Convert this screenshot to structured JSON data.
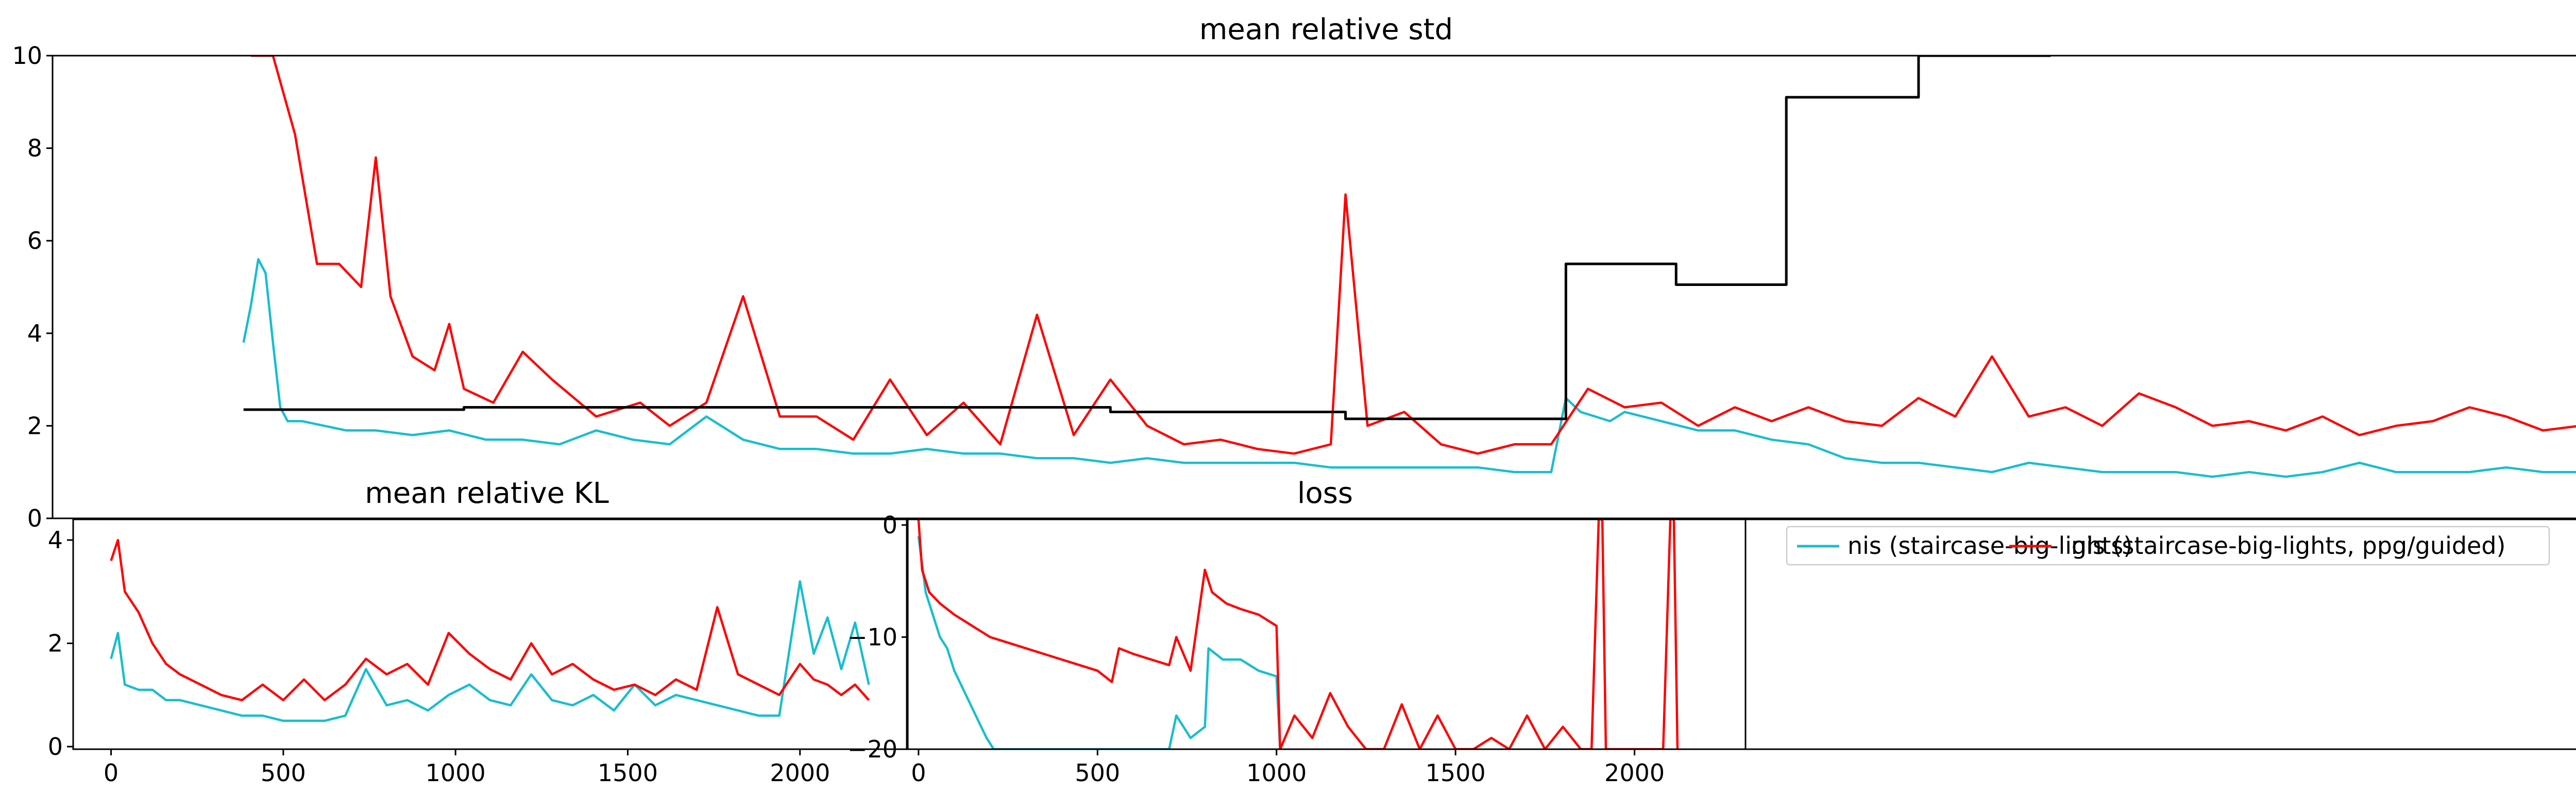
{
  "chart_data": [
    {
      "type": "line",
      "title": "mean relative std",
      "xlabel": "",
      "ylabel": "",
      "xlim": [
        -40,
        3430
      ],
      "ylim": [
        0,
        10
      ],
      "y_ticks": [
        0,
        2,
        4,
        6,
        8,
        10
      ],
      "x_ticks": [],
      "grid": false,
      "series": [
        {
          "name": "nis (staircase-big-lights)",
          "color": "#17BECF",
          "x": [
            220,
            230,
            240,
            250,
            260,
            270,
            280,
            300,
            330,
            360,
            400,
            450,
            500,
            550,
            600,
            650,
            700,
            750,
            800,
            850,
            900,
            950,
            1000,
            1050,
            1100,
            1150,
            1200,
            1250,
            1300,
            1350,
            1400,
            1450,
            1500,
            1550,
            1600,
            1650,
            1700,
            1750,
            1800,
            1850,
            1900,
            1950,
            2000,
            2020,
            2040,
            2060,
            2080,
            2100,
            2150,
            2200,
            2250,
            2300,
            2350,
            2400,
            2450,
            2500,
            2550,
            2600,
            2650,
            2700,
            2750,
            2800,
            2850,
            2900,
            2950,
            3000,
            3050,
            3100,
            3150,
            3200,
            3250,
            3300,
            3350,
            3400
          ],
          "y": [
            3.8,
            4.6,
            5.6,
            5.3,
            3.8,
            2.4,
            2.1,
            2.1,
            2.0,
            1.9,
            1.9,
            1.8,
            1.9,
            1.7,
            1.7,
            1.6,
            1.9,
            1.7,
            1.6,
            2.2,
            1.7,
            1.5,
            1.5,
            1.4,
            1.4,
            1.5,
            1.4,
            1.4,
            1.3,
            1.3,
            1.2,
            1.3,
            1.2,
            1.2,
            1.2,
            1.2,
            1.1,
            1.1,
            1.1,
            1.1,
            1.1,
            1.0,
            1.0,
            2.6,
            2.3,
            2.2,
            2.1,
            2.3,
            2.1,
            1.9,
            1.9,
            1.7,
            1.6,
            1.3,
            1.2,
            1.2,
            1.1,
            1.0,
            1.2,
            1.1,
            1.0,
            1.0,
            1.0,
            0.9,
            1.0,
            0.9,
            1.0,
            1.2,
            1.0,
            1.0,
            1.0,
            1.1,
            1.0,
            1.0
          ]
        },
        {
          "name": "nis (staircase-big-lights, ppg/guided)",
          "color": "#FF0000",
          "x": [
            230,
            260,
            290,
            320,
            350,
            380,
            400,
            420,
            450,
            480,
            500,
            520,
            560,
            600,
            640,
            700,
            760,
            800,
            850,
            900,
            950,
            1000,
            1050,
            1100,
            1150,
            1200,
            1250,
            1300,
            1350,
            1400,
            1450,
            1500,
            1550,
            1600,
            1650,
            1700,
            1720,
            1750,
            1800,
            1850,
            1900,
            1950,
            2000,
            2050,
            2100,
            2150,
            2200,
            2250,
            2300,
            2350,
            2400,
            2450,
            2500,
            2550,
            2600,
            2650,
            2700,
            2750,
            2800,
            2850,
            2900,
            2950,
            3000,
            3050,
            3100,
            3150,
            3200,
            3250,
            3300,
            3350,
            3400
          ],
          "y": [
            10,
            10,
            8.3,
            5.5,
            5.5,
            5.0,
            7.8,
            4.8,
            3.5,
            3.2,
            4.2,
            2.8,
            2.5,
            3.6,
            3.0,
            2.2,
            2.5,
            2.0,
            2.5,
            4.8,
            2.2,
            2.2,
            1.7,
            3.0,
            1.8,
            2.5,
            1.6,
            4.4,
            1.8,
            3.0,
            2.0,
            1.6,
            1.7,
            1.5,
            1.4,
            1.6,
            7.0,
            2.0,
            2.3,
            1.6,
            1.4,
            1.6,
            1.6,
            2.8,
            2.4,
            2.5,
            2.0,
            2.4,
            2.1,
            2.4,
            2.1,
            2.0,
            2.6,
            2.2,
            3.5,
            2.2,
            2.4,
            2.0,
            2.7,
            2.4,
            2.0,
            2.1,
            1.9,
            2.2,
            1.8,
            2.0,
            2.1,
            2.4,
            2.2,
            1.9,
            2.0
          ]
        },
        {
          "name": "",
          "color": "#000000",
          "step": true,
          "x": [
            220,
            520,
            520,
            1400,
            1400,
            1720,
            1720,
            2020,
            2020,
            2170,
            2170,
            2320,
            2320,
            2500,
            2500,
            2680
          ],
          "y": [
            2.35,
            2.35,
            2.4,
            2.4,
            2.3,
            2.3,
            2.15,
            2.15,
            5.5,
            5.5,
            5.05,
            5.05,
            9.1,
            9.1,
            10,
            10
          ]
        }
      ]
    },
    {
      "type": "line",
      "title": "mean relative KL",
      "xlabel": "",
      "ylabel": "",
      "xlim": [
        -110,
        2310
      ],
      "ylim": [
        -0.05,
        4.4
      ],
      "x_ticks": [
        0,
        500,
        1000,
        1500,
        2000
      ],
      "y_ticks": [
        0,
        2,
        4
      ],
      "grid": false,
      "series": [
        {
          "name": "nis (staircase-big-lights)",
          "color": "#17BECF",
          "x": [
            0,
            20,
            40,
            80,
            120,
            160,
            200,
            260,
            320,
            380,
            440,
            500,
            560,
            620,
            680,
            740,
            800,
            860,
            920,
            980,
            1040,
            1100,
            1160,
            1220,
            1280,
            1340,
            1400,
            1460,
            1520,
            1580,
            1640,
            1700,
            1760,
            1820,
            1880,
            1940,
            2000,
            2040,
            2080,
            2120,
            2160,
            2200
          ],
          "y": [
            1.7,
            2.2,
            1.2,
            1.1,
            1.1,
            0.9,
            0.9,
            0.8,
            0.7,
            0.6,
            0.6,
            0.5,
            0.5,
            0.5,
            0.6,
            1.5,
            0.8,
            0.9,
            0.7,
            1.0,
            1.2,
            0.9,
            0.8,
            1.4,
            0.9,
            0.8,
            1.0,
            0.7,
            1.2,
            0.8,
            1.0,
            0.9,
            0.8,
            0.7,
            0.6,
            0.6,
            3.2,
            1.8,
            2.5,
            1.5,
            2.4,
            1.2
          ]
        },
        {
          "name": "nis (staircase-big-lights, ppg/guided)",
          "color": "#FF0000",
          "x": [
            0,
            20,
            40,
            80,
            120,
            160,
            200,
            260,
            320,
            380,
            440,
            500,
            560,
            620,
            680,
            740,
            800,
            860,
            920,
            980,
            1040,
            1100,
            1160,
            1220,
            1280,
            1340,
            1400,
            1460,
            1520,
            1580,
            1640,
            1700,
            1760,
            1820,
            1880,
            1940,
            2000,
            2040,
            2080,
            2120,
            2160,
            2200
          ],
          "y": [
            3.6,
            4.0,
            3.0,
            2.6,
            2.0,
            1.6,
            1.4,
            1.2,
            1.0,
            0.9,
            1.2,
            0.9,
            1.3,
            0.9,
            1.2,
            1.7,
            1.4,
            1.6,
            1.2,
            2.2,
            1.8,
            1.5,
            1.3,
            2.0,
            1.4,
            1.6,
            1.3,
            1.1,
            1.2,
            1.0,
            1.3,
            1.1,
            2.7,
            1.4,
            1.2,
            1.0,
            1.6,
            1.3,
            1.2,
            1.0,
            1.2,
            0.9
          ]
        }
      ]
    },
    {
      "type": "line",
      "title": "loss",
      "xlabel": "",
      "ylabel": "",
      "xlim": [
        -30,
        2310
      ],
      "ylim": [
        -20,
        0.5
      ],
      "x_ticks": [
        0,
        500,
        1000,
        1500,
        2000
      ],
      "y_ticks": [
        0,
        -10,
        -20
      ],
      "grid": false,
      "series": [
        {
          "name": "nis (staircase-big-lights)",
          "color": "#17BECF",
          "x": [
            0,
            20,
            40,
            60,
            80,
            100,
            130,
            160,
            190,
            210,
            600,
            650,
            700,
            720,
            760,
            800,
            810,
            850,
            900,
            950,
            1000,
            1010
          ],
          "y": [
            -1,
            -6,
            -8,
            -10,
            -11,
            -13,
            -15,
            -17,
            -19,
            -20,
            -20,
            -20,
            -20,
            -17,
            -19,
            -18,
            -11,
            -12,
            -12,
            -13,
            -13.5,
            -20
          ]
        },
        {
          "name": "nis (staircase-big-lights, ppg/guided)",
          "color": "#FF0000",
          "x": [
            0,
            10,
            30,
            60,
            100,
            150,
            200,
            250,
            300,
            350,
            400,
            450,
            500,
            540,
            560,
            600,
            650,
            700,
            720,
            760,
            800,
            820,
            860,
            900,
            950,
            1000,
            1010,
            1050,
            1100,
            1150,
            1200,
            1250,
            1300,
            1350,
            1400,
            1450,
            1500,
            1550,
            1600,
            1650,
            1700,
            1750,
            1800,
            1850,
            1880,
            1900,
            1910,
            1920,
            2080,
            2100,
            2110,
            2120
          ],
          "y": [
            0.5,
            -4,
            -6,
            -7,
            -8,
            -9,
            -10,
            -10.5,
            -11,
            -11.5,
            -12,
            -12.5,
            -13,
            -14,
            -11,
            -11.5,
            -12,
            -12.5,
            -10,
            -13,
            -4,
            -6,
            -7,
            -7.5,
            -8,
            -9,
            -20,
            -17,
            -19,
            -15,
            -18,
            -20,
            -20,
            -16,
            -20,
            -17,
            -20,
            -20,
            -19,
            -20,
            -17,
            -20,
            -18,
            -20,
            -20,
            0.5,
            0.5,
            -20,
            -20,
            0.5,
            0.5,
            -20
          ]
        }
      ]
    }
  ],
  "legend": {
    "placement": "upper-left",
    "entries": [
      {
        "label": "nis (staircase-big-lights)",
        "color": "#17BECF"
      },
      {
        "label": "nis (staircase-big-lights, ppg/guided)",
        "color": "#FF0000"
      }
    ]
  }
}
